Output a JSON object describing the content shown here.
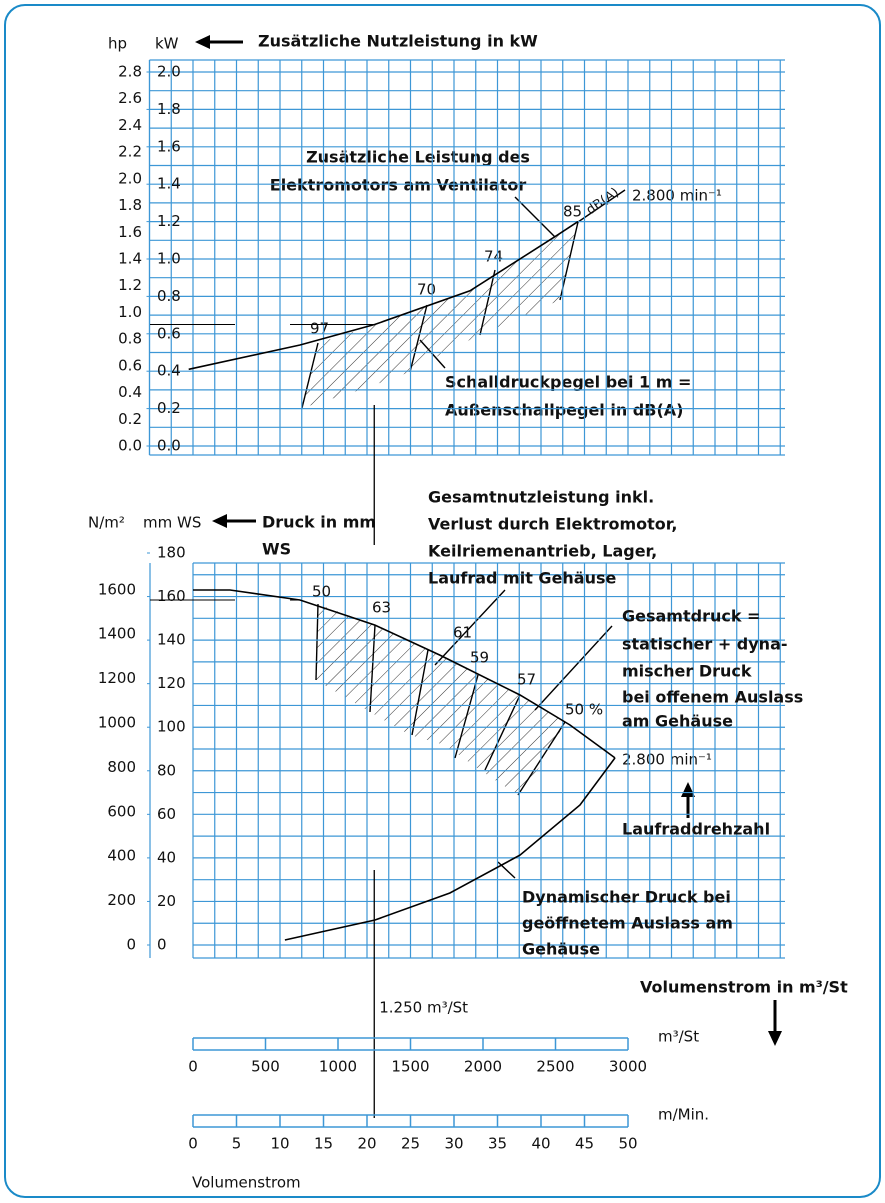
{
  "chart_data": [
    {
      "type": "line",
      "title": "Zusätzliche Nutzleistung in kW",
      "y_label": "kW",
      "y2_label": "hp",
      "ylim": [
        0,
        2.0
      ],
      "yticks": [
        {
          "value": 0,
          "label": "0.0"
        },
        {
          "value": 0.2,
          "label": "0.2"
        },
        {
          "value": 0.4,
          "label": "0.4"
        },
        {
          "value": 0.6,
          "label": "0.6"
        },
        {
          "value": 0.8,
          "label": "0.8"
        },
        {
          "value": 1,
          "label": "1.0"
        },
        {
          "value": 1.2,
          "label": "1.2"
        },
        {
          "value": 1.4,
          "label": "1.4"
        },
        {
          "value": 1.6,
          "label": "1.6"
        },
        {
          "value": 1.8,
          "label": "1.8"
        },
        {
          "value": 2,
          "label": "2.0"
        }
      ],
      "y2lim": [
        0,
        2.8
      ],
      "y2ticks": [
        {
          "value": 0,
          "label": "0.0"
        },
        {
          "value": 0.2,
          "label": "0.2"
        },
        {
          "value": 0.4,
          "label": "0.4"
        },
        {
          "value": 0.6,
          "label": "0.6"
        },
        {
          "value": 0.8,
          "label": "0.8"
        },
        {
          "value": 1,
          "label": "1.0"
        },
        {
          "value": 1.2,
          "label": "1.2"
        },
        {
          "value": 1.4,
          "label": "1.4"
        },
        {
          "value": 1.6,
          "label": "1.6"
        },
        {
          "value": 1.8,
          "label": "1.8"
        },
        {
          "value": 2,
          "label": "2.0"
        },
        {
          "value": 2.2,
          "label": "2.2"
        },
        {
          "value": 2.4,
          "label": "2.4"
        },
        {
          "value": 2.6,
          "label": "2.6"
        },
        {
          "value": 2.8,
          "label": "2.8"
        }
      ],
      "series": [
        {
          "name": "2.800 min⁻¹",
          "color": "#000000",
          "x": [
            -30,
            738,
            1255,
            1910,
            2497,
            2655
          ],
          "values": [
            0.41,
            0.54,
            0.65,
            0.83,
            1.12,
            1.2
          ]
        }
      ],
      "annotations": [
        "Zusätzliche Leistung des",
        "Elektromotors am Ventilator",
        "Schalldruckpegel bei 1 m =",
        "Außenschallpegel in dB(A)"
      ],
      "sound_levels": [
        97,
        70,
        74,
        85
      ],
      "sound_unit": "dB(A)",
      "grid": true
    },
    {
      "type": "line",
      "title": "Druck in mm",
      "title_cont": "WS",
      "y_label": "mm WS",
      "y2_label": "N/m²",
      "ylim": [
        0,
        180
      ],
      "yticks": [
        0,
        20,
        40,
        60,
        80,
        100,
        120,
        140,
        160,
        180
      ],
      "y2lim": [
        0,
        1766
      ],
      "y2ticks": [
        0,
        200,
        400,
        600,
        800,
        1000,
        1200,
        1400,
        1600
      ],
      "series": [
        {
          "name": "2.800 min⁻¹",
          "color": "#000000",
          "x": [
            0,
            255,
            738,
            1255,
            1703,
            2255,
            2600,
            2910
          ],
          "values": [
            163,
            163,
            158.4,
            146.9,
            133.1,
            114.8,
            101,
            85.9
          ]
        },
        {
          "name": "Dynamischer Druck",
          "color": "#000000",
          "x": [
            634,
            1255,
            1772,
            2255,
            2669,
            2910
          ],
          "values": [
            2.3,
            11.5,
            23.9,
            41.3,
            64.3,
            85.9
          ]
        }
      ],
      "efficiency": {
        "values": [
          50,
          63,
          61,
          59,
          57,
          50
        ],
        "value_labels": [
          "50",
          "63",
          "61",
          "59",
          "57",
          "50 %"
        ]
      },
      "annotations": [
        "Gesamtnutzleistung inkl.",
        "Verlust durch Elektromotor,",
        "Keilriemenantrieb, Lager,",
        "Laufrad mit Gehäuse",
        "Gesamtdruck =",
        "statischer + dyna-",
        "mischer Druck",
        "bei offenem Auslass",
        "am Gehäuse",
        "Laufraddrehzahl",
        "Dynamischer Druck bei",
        "geöffnetem Auslass am",
        "Gehäuse"
      ],
      "grid": true
    }
  ],
  "x_axis": {
    "title": "Volumenstrom in m³/St",
    "label": "Volumenstrom",
    "reference": {
      "value": 1250,
      "label": "1.250 m³/St"
    },
    "scales": [
      {
        "unit": "m³/St",
        "xlim": [
          0,
          3000
        ],
        "xticks": [
          0,
          500,
          1000,
          1500,
          2000,
          2500,
          3000
        ]
      },
      {
        "unit": "m/Min.",
        "xlim": [
          0,
          50
        ],
        "xticks": [
          0,
          5,
          10,
          15,
          20,
          25,
          30,
          35,
          40,
          45,
          50
        ]
      }
    ]
  }
}
